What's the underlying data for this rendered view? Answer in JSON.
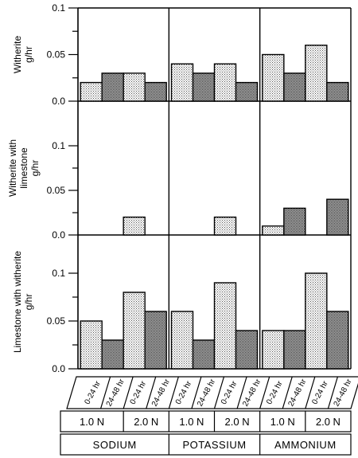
{
  "chart_data": {
    "type": "bar",
    "panels": [
      {
        "label_lines": [
          "Witherite",
          "g/hr"
        ],
        "ylim": [
          0,
          0.1
        ],
        "yticks": [
          "0.0",
          "0.05",
          "0.1"
        ],
        "values": [
          0.02,
          0.03,
          0.03,
          0.02,
          0.04,
          0.03,
          0.04,
          0.02,
          0.05,
          0.03,
          0.06,
          0.02
        ]
      },
      {
        "label_lines": [
          "Witherite with",
          "limestone",
          "g/hr"
        ],
        "ylim": [
          0,
          0.1
        ],
        "yticks": [
          "0.0",
          "0.05",
          "0.1"
        ],
        "values": [
          0,
          0,
          0.02,
          0,
          0,
          0,
          0.02,
          0,
          0.01,
          0.03,
          0,
          0.04
        ]
      },
      {
        "label_lines": [
          "Limestone with witherite",
          "g/hr"
        ],
        "ylim": [
          0,
          0.1
        ],
        "yticks": [
          "0.0",
          "0.05",
          "0.1"
        ],
        "values": [
          0.05,
          0.03,
          0.08,
          0.06,
          0.06,
          0.03,
          0.09,
          0.04,
          0.04,
          0.04,
          0.1,
          0.06
        ]
      }
    ],
    "time_labels": [
      "0-24 hr",
      "24-48 hr",
      "0-24 hr",
      "24-48 hr",
      "0-24 hr",
      "24-48 hr",
      "0-24 hr",
      "24-48 hr",
      "0-24 hr",
      "24-48 hr",
      "0-24 hr",
      "24-48 hr"
    ],
    "concentration_labels": [
      "1.0 N",
      "2.0 N",
      "1.0 N",
      "2.0 N",
      "1.0 N",
      "2.0 N"
    ],
    "salt_labels": [
      "SODIUM",
      "POTASSIUM",
      "AMMONIUM"
    ],
    "colors": {
      "bar_light": "#e4e4e4",
      "bar_dark": "#b0b0b0",
      "stroke": "#000000"
    }
  }
}
